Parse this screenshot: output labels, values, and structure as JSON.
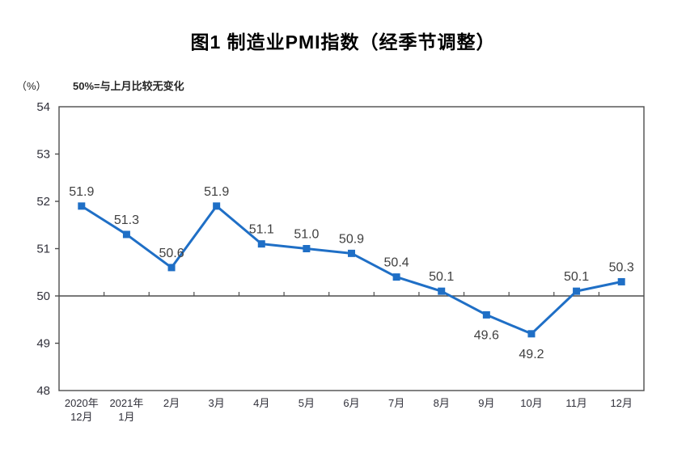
{
  "chart_data": {
    "type": "line",
    "title": "图1 制造业PMI指数（经季节调整）",
    "unit_label": "（%）",
    "note": "50%=与上月比较无变化",
    "categories": [
      [
        "2020年",
        "12月"
      ],
      [
        "2021年",
        "1月"
      ],
      [
        "2月"
      ],
      [
        "3月"
      ],
      [
        "4月"
      ],
      [
        "5月"
      ],
      [
        "6月"
      ],
      [
        "7月"
      ],
      [
        "8月"
      ],
      [
        "9月"
      ],
      [
        "10月"
      ],
      [
        "11月"
      ],
      [
        "12月"
      ]
    ],
    "series": [
      {
        "name": "制造业PMI",
        "values": [
          51.9,
          51.3,
          50.6,
          51.9,
          51.1,
          51.0,
          50.9,
          50.4,
          50.1,
          49.6,
          49.2,
          50.1,
          50.3
        ]
      }
    ],
    "point_labels": [
      "51.9",
      "51.3",
      "50.6",
      "51.9",
      "51.1",
      "51.0",
      "50.9",
      "50.4",
      "50.1",
      "49.6",
      "49.2",
      "50.1",
      "50.3"
    ],
    "label_positions": [
      "above",
      "above",
      "above",
      "above",
      "above",
      "above",
      "above",
      "above",
      "above",
      "below",
      "below",
      "above",
      "above"
    ],
    "ylim": [
      48,
      54
    ],
    "ytick_step": 1,
    "yticks": [
      "48",
      "49",
      "50",
      "51",
      "52",
      "53",
      "54"
    ],
    "reference_line": 50,
    "grid": "off",
    "legend": "none",
    "colors": {
      "line": "#1f6fc6",
      "marker": "#1f6fc6",
      "data_label": "#404040",
      "axis": "#4d4d4d",
      "tick_label": "#30303a",
      "title": "#000000"
    }
  }
}
